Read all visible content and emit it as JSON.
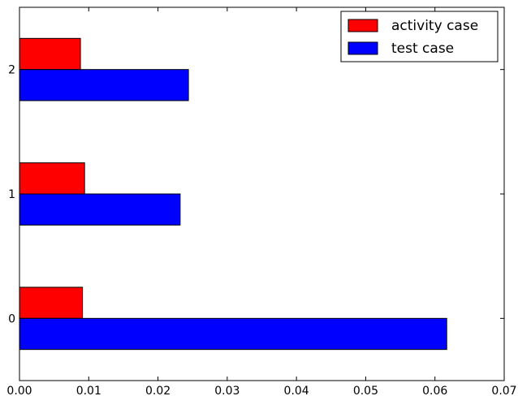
{
  "chart_data": {
    "type": "bar",
    "orientation": "horizontal",
    "categories": [
      "0",
      "1",
      "2"
    ],
    "series": [
      {
        "name": "activity case",
        "color": "#ff0000",
        "values": [
          0.0091,
          0.0094,
          0.0088
        ]
      },
      {
        "name": "test case",
        "color": "#0000ff",
        "values": [
          0.0617,
          0.0232,
          0.0244
        ]
      }
    ],
    "xlim": [
      0,
      0.07
    ],
    "xticks": [
      "0.00",
      "0.01",
      "0.02",
      "0.03",
      "0.04",
      "0.05",
      "0.06",
      "0.07"
    ],
    "yticks": [
      "0",
      "1",
      "2"
    ],
    "title": "",
    "xlabel": "",
    "ylabel": "",
    "grid": false,
    "legend": {
      "position": "top-right"
    }
  }
}
